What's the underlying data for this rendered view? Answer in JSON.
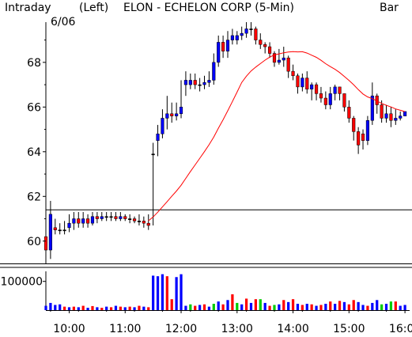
{
  "header": {
    "intraday": "Intraday",
    "date": "6/06",
    "side": "(Left)",
    "title": "ELON - ECHELON CORP (5-Min)",
    "chart_style": "Bar"
  },
  "colors": {
    "up": "#0000ff",
    "down": "#ff0000",
    "neutral": "#000000",
    "volume_other": "#00cc00",
    "ma": "#ff0000",
    "reference_line": "#000000"
  },
  "chart_data": {
    "type": "candlestick",
    "title": "ELON - ECHELON CORP (5-Min)",
    "interval": "5-Min",
    "date": "6/06",
    "axis_side": "Left",
    "price_axis": {
      "ticks": [
        "60",
        "62",
        "64",
        "66",
        "68"
      ],
      "range": [
        59,
        69.8
      ]
    },
    "volume_axis": {
      "ticks": [
        "100000"
      ],
      "range": [
        0,
        135000
      ]
    },
    "time_axis": {
      "ticks": [
        "10:00",
        "11:00",
        "12:00",
        "13:00",
        "14:00",
        "15:00",
        "16:00"
      ],
      "start": "9:35",
      "end": "16:05"
    },
    "reference_line": 61.4,
    "moving_average": true,
    "times": [
      "9:35",
      "9:40",
      "9:45",
      "9:50",
      "9:55",
      "10:00",
      "10:05",
      "10:10",
      "10:15",
      "10:20",
      "10:25",
      "10:30",
      "10:35",
      "10:40",
      "10:45",
      "10:50",
      "10:55",
      "11:00",
      "11:05",
      "11:10",
      "11:15",
      "11:20",
      "11:25",
      "11:30",
      "11:35",
      "11:40",
      "11:45",
      "11:50",
      "11:55",
      "12:00",
      "12:05",
      "12:10",
      "12:15",
      "12:20",
      "12:25",
      "12:30",
      "12:35",
      "12:40",
      "12:45",
      "12:50",
      "12:55",
      "13:00",
      "13:05",
      "13:10",
      "13:15",
      "13:20",
      "13:25",
      "13:30",
      "13:35",
      "13:40",
      "13:45",
      "13:50",
      "13:55",
      "14:00",
      "14:05",
      "14:10",
      "14:15",
      "14:20",
      "14:25",
      "14:30",
      "14:35",
      "14:40",
      "14:45",
      "14:50",
      "14:55",
      "15:00",
      "15:05",
      "15:10",
      "15:15",
      "15:20",
      "15:25",
      "15:30",
      "15:35",
      "15:40",
      "15:45",
      "15:50",
      "15:55",
      "16:00"
    ],
    "open": [
      60.2,
      59.6,
      60.6,
      60.5,
      60.5,
      60.6,
      60.8,
      61.0,
      60.8,
      61.0,
      60.8,
      61.1,
      61.0,
      61.1,
      61.1,
      61.1,
      61.0,
      61.1,
      61.0,
      61.0,
      60.9,
      60.9,
      60.8,
      63.9,
      64.5,
      64.8,
      65.5,
      65.7,
      65.6,
      65.7,
      67.0,
      67.0,
      67.2,
      67.0,
      67.0,
      67.1,
      67.2,
      68.0,
      68.9,
      68.5,
      69.0,
      69.0,
      69.2,
      69.3,
      69.5,
      69.5,
      69.0,
      68.8,
      68.7,
      68.4,
      68.0,
      68.1,
      68.2,
      67.6,
      67.4,
      66.9,
      67.3,
      66.8,
      67.0,
      66.6,
      66.4,
      66.1,
      66.6,
      66.9,
      66.6,
      66.0,
      65.5,
      64.9,
      64.8,
      64.5,
      65.4,
      66.5,
      66.1,
      65.5,
      65.7,
      65.4,
      65.5,
      65.6
    ],
    "close": [
      59.6,
      61.2,
      60.5,
      60.5,
      60.5,
      60.8,
      61.0,
      60.8,
      61.0,
      60.8,
      61.1,
      61.0,
      61.1,
      61.1,
      61.1,
      61.0,
      61.1,
      61.0,
      61.0,
      60.9,
      60.9,
      60.8,
      60.7,
      63.9,
      64.8,
      65.5,
      65.7,
      65.6,
      65.7,
      66.0,
      67.2,
      67.2,
      67.0,
      67.0,
      67.1,
      67.2,
      68.0,
      68.9,
      68.5,
      69.0,
      69.2,
      69.2,
      69.3,
      69.5,
      69.5,
      69.0,
      68.8,
      68.7,
      68.4,
      68.0,
      68.1,
      68.2,
      67.6,
      67.4,
      66.9,
      67.3,
      66.8,
      67.0,
      66.6,
      66.4,
      66.1,
      66.6,
      66.9,
      66.6,
      66.0,
      65.5,
      64.9,
      64.3,
      64.5,
      65.4,
      66.5,
      66.1,
      65.5,
      65.7,
      65.4,
      65.5,
      65.6,
      65.8
    ],
    "high": [
      61.3,
      61.8,
      61.0,
      60.8,
      60.9,
      61.2,
      61.3,
      61.3,
      61.3,
      61.2,
      61.3,
      61.3,
      61.3,
      61.3,
      61.3,
      61.3,
      61.3,
      61.2,
      61.2,
      61.1,
      61.2,
      61.1,
      61.2,
      64.4,
      65.2,
      65.9,
      66.5,
      66.2,
      66.2,
      67.2,
      67.6,
      67.5,
      67.5,
      67.3,
      67.4,
      67.6,
      68.4,
      69.2,
      69.2,
      69.4,
      69.5,
      69.4,
      69.6,
      69.8,
      69.8,
      69.6,
      69.3,
      68.9,
      68.9,
      68.5,
      68.6,
      68.7,
      68.3,
      67.9,
      67.5,
      67.5,
      67.6,
      67.1,
      67.1,
      66.9,
      66.7,
      66.9,
      67.0,
      66.9,
      66.6,
      66.3,
      65.6,
      65.1,
      65.0,
      65.6,
      67.1,
      66.6,
      66.3,
      66.1,
      66.0,
      65.9,
      65.8,
      65.8
    ],
    "low": [
      59.0,
      59.2,
      60.3,
      60.3,
      60.3,
      60.4,
      60.5,
      60.6,
      60.6,
      60.6,
      60.7,
      60.8,
      60.9,
      60.9,
      60.9,
      60.9,
      60.9,
      60.9,
      60.8,
      60.8,
      60.7,
      60.6,
      60.5,
      60.7,
      63.8,
      64.6,
      65.0,
      65.3,
      65.4,
      65.5,
      66.5,
      66.8,
      66.8,
      66.7,
      66.8,
      66.9,
      67.0,
      67.8,
      68.2,
      68.2,
      68.8,
      68.8,
      69.0,
      69.1,
      69.2,
      68.8,
      68.6,
      68.4,
      68.2,
      67.8,
      67.9,
      67.8,
      67.3,
      67.2,
      66.6,
      66.7,
      66.6,
      66.3,
      66.3,
      66.2,
      65.9,
      65.9,
      66.3,
      66.3,
      65.8,
      65.3,
      64.5,
      63.9,
      64.1,
      64.3,
      65.2,
      65.7,
      65.3,
      65.3,
      65.1,
      65.2,
      65.4,
      65.6
    ],
    "volume": [
      15000,
      25000,
      18000,
      20000,
      12000,
      10000,
      12000,
      10000,
      15000,
      8000,
      14000,
      10000,
      8000,
      12000,
      10000,
      15000,
      12000,
      10000,
      12000,
      10000,
      15000,
      12000,
      10000,
      120000,
      118000,
      125000,
      118000,
      38000,
      115000,
      125000,
      15000,
      20000,
      15000,
      18000,
      20000,
      12000,
      22000,
      30000,
      20000,
      35000,
      55000,
      25000,
      20000,
      40000,
      25000,
      38000,
      38000,
      25000,
      15000,
      18000,
      20000,
      35000,
      28000,
      38000,
      22000,
      18000,
      22000,
      20000,
      15000,
      18000,
      22000,
      30000,
      22000,
      32000,
      28000,
      20000,
      35000,
      28000,
      18000,
      15000,
      25000,
      35000,
      20000,
      22000,
      30000,
      30000,
      15000,
      18000
    ],
    "volume_color": [
      "up",
      "up",
      "up",
      "up",
      "down",
      "up",
      "down",
      "up",
      "down",
      "up",
      "down",
      "up",
      "down",
      "up",
      "down",
      "up",
      "down",
      "up",
      "down",
      "up",
      "down",
      "up",
      "down",
      "up",
      "up",
      "up",
      "down",
      "down",
      "up",
      "up",
      "up",
      "other",
      "down",
      "up",
      "down",
      "up",
      "other",
      "up",
      "down",
      "up",
      "down",
      "other",
      "up",
      "down",
      "up",
      "down",
      "other",
      "up",
      "down",
      "other",
      "up",
      "down",
      "up",
      "down",
      "up",
      "down",
      "up",
      "down",
      "up",
      "down",
      "up",
      "down",
      "up",
      "down",
      "up",
      "down",
      "down",
      "up",
      "up",
      "down",
      "up",
      "up",
      "other",
      "up",
      "other",
      "down",
      "up",
      "up"
    ]
  }
}
